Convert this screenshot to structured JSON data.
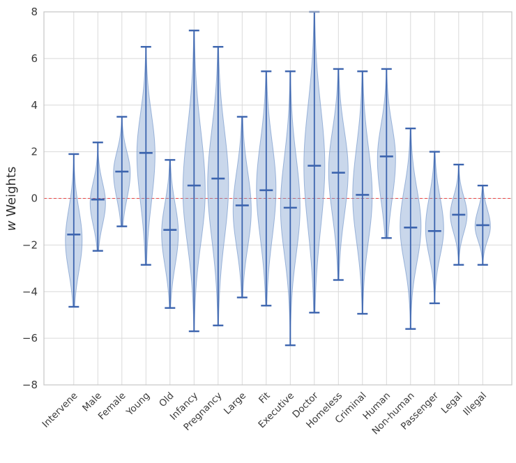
{
  "chart_data": {
    "type": "violin",
    "title": "",
    "ylabel_italic": "w",
    "ylabel_rest": " Weights",
    "ylim": [
      -8,
      8
    ],
    "yticks": [
      8,
      6,
      4,
      2,
      0,
      -2,
      -4,
      -6,
      -8
    ],
    "ytick_labels": [
      "8",
      "6",
      "4",
      "2",
      "0",
      "−2",
      "−4",
      "−6",
      "−8"
    ],
    "reference_line_y": 0,
    "grid": true,
    "legend": null,
    "categories": [
      "Intervene",
      "Male",
      "Female",
      "Young",
      "Old",
      "Infancy",
      "Pregnancy",
      "Large",
      "Fit",
      "Executive",
      "Doctor",
      "Homeless",
      "Criminal",
      "Human",
      "Non-human",
      "Passenger",
      "Legal",
      "Illegal"
    ],
    "violins": [
      {
        "label": "Intervene",
        "median": -1.55,
        "whisker_high": 1.9,
        "whisker_low": -4.65,
        "mode": -1.8,
        "body_high": 0.6,
        "body_low": -4.2,
        "halfwidth": 12
      },
      {
        "label": "Male",
        "median": -0.05,
        "whisker_high": 2.4,
        "whisker_low": -2.25,
        "mode": -0.2,
        "body_high": 1.4,
        "body_low": -1.9,
        "halfwidth": 11
      },
      {
        "label": "Female",
        "median": 1.15,
        "whisker_high": 3.5,
        "whisker_low": -1.2,
        "mode": 1.1,
        "body_high": 2.7,
        "body_low": -0.9,
        "halfwidth": 12
      },
      {
        "label": "Young",
        "median": 1.95,
        "whisker_high": 6.5,
        "whisker_low": -2.85,
        "mode": 1.9,
        "body_high": 5.0,
        "body_low": -1.8,
        "halfwidth": 13
      },
      {
        "label": "Old",
        "median": -1.35,
        "whisker_high": 1.65,
        "whisker_low": -4.7,
        "mode": -1.5,
        "body_high": 0.8,
        "body_low": -4.0,
        "halfwidth": 12
      },
      {
        "label": "Infancy",
        "median": 0.55,
        "whisker_high": 7.2,
        "whisker_low": -5.7,
        "mode": 0.3,
        "body_high": 5.0,
        "body_low": -3.7,
        "halfwidth": 16
      },
      {
        "label": "Pregnancy",
        "median": 0.85,
        "whisker_high": 6.5,
        "whisker_low": -5.45,
        "mode": 0.6,
        "body_high": 4.8,
        "body_low": -3.6,
        "halfwidth": 15
      },
      {
        "label": "Large",
        "median": -0.3,
        "whisker_high": 3.5,
        "whisker_low": -4.25,
        "mode": -0.5,
        "body_high": 2.5,
        "body_low": -3.4,
        "halfwidth": 13
      },
      {
        "label": "Fit",
        "median": 0.35,
        "whisker_high": 5.45,
        "whisker_low": -4.6,
        "mode": 0.4,
        "body_high": 4.0,
        "body_low": -3.4,
        "halfwidth": 14
      },
      {
        "label": "Executive",
        "median": -0.4,
        "whisker_high": 5.45,
        "whisker_low": -6.3,
        "mode": -0.4,
        "body_high": 3.5,
        "body_low": -4.0,
        "halfwidth": 14
      },
      {
        "label": "Doctor",
        "median": 1.4,
        "whisker_high": 8.0,
        "whisker_low": -4.9,
        "mode": 1.4,
        "body_high": 6.0,
        "body_low": -3.4,
        "halfwidth": 15
      },
      {
        "label": "Homeless",
        "median": 1.1,
        "whisker_high": 5.55,
        "whisker_low": -3.5,
        "mode": 1.2,
        "body_high": 4.3,
        "body_low": -2.3,
        "halfwidth": 14
      },
      {
        "label": "Criminal",
        "median": 0.15,
        "whisker_high": 5.45,
        "whisker_low": -4.95,
        "mode": 0.1,
        "body_high": 3.9,
        "body_low": -3.4,
        "halfwidth": 14
      },
      {
        "label": "Human",
        "median": 1.8,
        "whisker_high": 5.55,
        "whisker_low": -1.7,
        "mode": 1.7,
        "body_high": 4.3,
        "body_low": -1.5,
        "halfwidth": 13
      },
      {
        "label": "Non-human",
        "median": -1.25,
        "whisker_high": 3.0,
        "whisker_low": -5.6,
        "mode": -1.2,
        "body_high": 1.7,
        "body_low": -4.0,
        "halfwidth": 15
      },
      {
        "label": "Passenger",
        "median": -1.4,
        "whisker_high": 2.0,
        "whisker_low": -4.5,
        "mode": -1.3,
        "body_high": 1.1,
        "body_low": -3.4,
        "halfwidth": 13
      },
      {
        "label": "Legal",
        "median": -0.7,
        "whisker_high": 1.45,
        "whisker_low": -2.85,
        "mode": -0.7,
        "body_high": 0.7,
        "body_low": -2.1,
        "halfwidth": 12
      },
      {
        "label": "Illegal",
        "median": -1.15,
        "whisker_high": 0.55,
        "whisker_low": -2.85,
        "mode": -1.2,
        "body_high": 0.1,
        "body_low": -2.3,
        "halfwidth": 11
      }
    ],
    "colors": {
      "violin_fill": "#7f9fcf",
      "violin_line": "#3c64ae",
      "reference_line": "#e84545",
      "grid": "#d9d9d9",
      "frame": "#c6c6c6",
      "text": "#3b3b3b",
      "background": "#ffffff"
    }
  }
}
